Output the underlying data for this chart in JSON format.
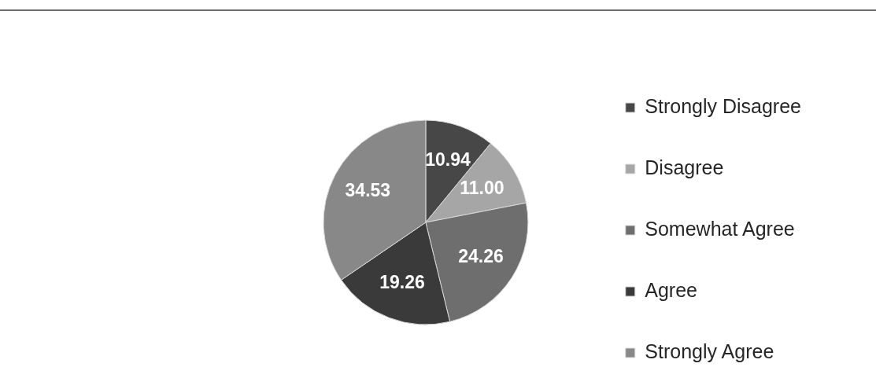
{
  "chart_data": {
    "type": "pie",
    "categories": [
      "Strongly Disagree",
      "Disagree",
      "Somewhat Agree",
      "Agree",
      "Strongly Agree"
    ],
    "values": [
      10.94,
      11.0,
      24.26,
      19.26,
      34.53
    ],
    "colors": [
      "#474747",
      "#a6a6a6",
      "#6e6e6e",
      "#3a3a3a",
      "#888888"
    ],
    "value_labels": [
      "10.94",
      "11.00",
      "24.26",
      "19.26",
      "34.53"
    ],
    "legend": "right"
  }
}
